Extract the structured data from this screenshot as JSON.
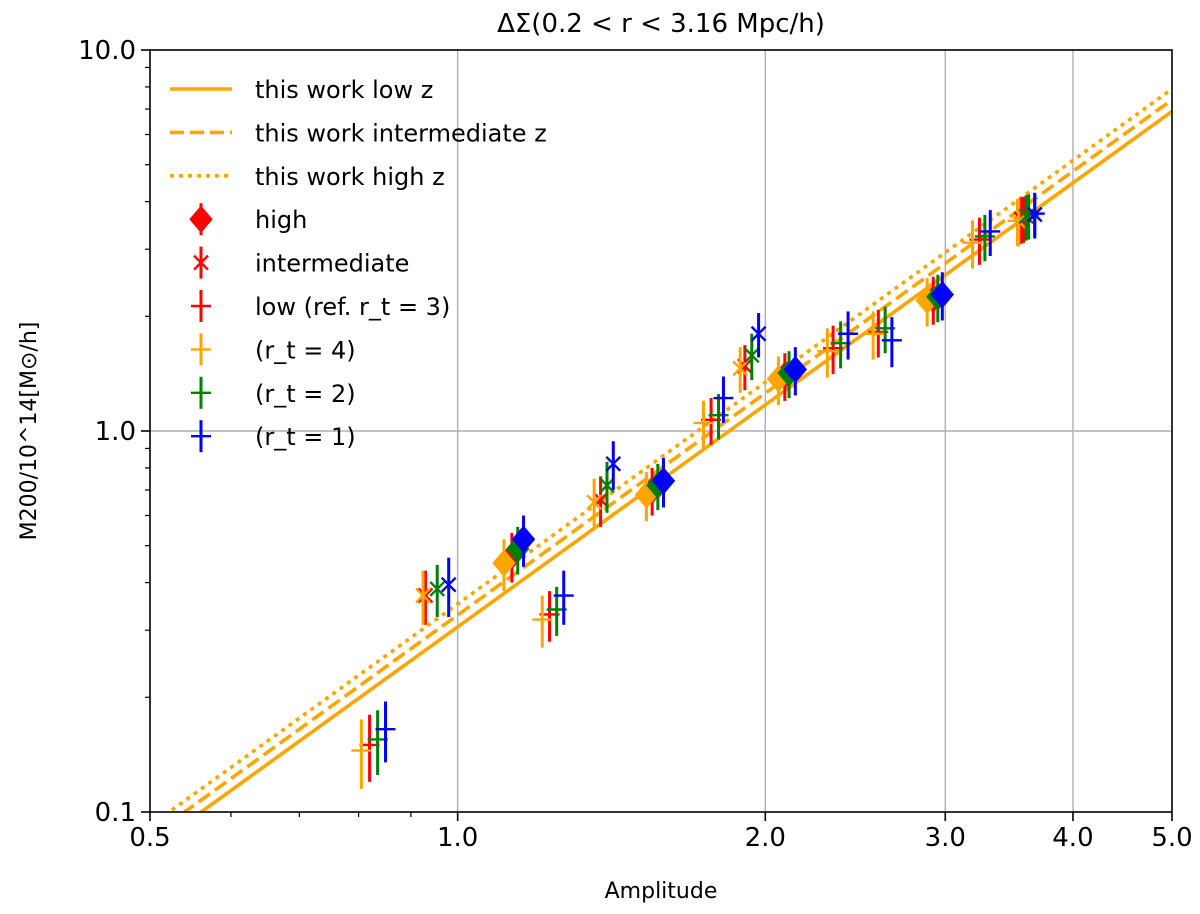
{
  "chart_data": {
    "type": "scatter",
    "title": "ΔΣ(0.2 < r < 3.16 Mpc/h)",
    "xlabel": "Amplitude",
    "ylabel": "M200/10^14[M⊙/h]",
    "xscale": "log",
    "yscale": "log",
    "xlim": [
      0.5,
      5.0
    ],
    "ylim": [
      0.1,
      10.0
    ],
    "xticks": [
      0.5,
      1.0,
      2.0,
      3.0,
      4.0,
      5.0
    ],
    "xtick_labels": [
      "0.5",
      "1.0",
      "2.0",
      "3.0",
      "4.0",
      "5.0"
    ],
    "yticks": [
      0.1,
      1.0,
      10.0
    ],
    "ytick_labels": [
      "0.1",
      "1.0",
      "10.0"
    ],
    "grid": true,
    "legend_position": "top-left",
    "legend": [
      {
        "label": "this work low z",
        "kind": "line",
        "style": "solid",
        "color": "#ffa500"
      },
      {
        "label": "this work intermediate z",
        "kind": "line",
        "style": "dashed",
        "color": "#ffa500"
      },
      {
        "label": "this work high z",
        "kind": "line",
        "style": "dotted",
        "color": "#ffa500"
      },
      {
        "label": "high",
        "kind": "marker",
        "marker": "diamond",
        "color": "#ff0000"
      },
      {
        "label": "intermediate",
        "kind": "marker",
        "marker": "x",
        "color": "#ff0000"
      },
      {
        "label": "low (ref. r_t = 3)",
        "kind": "marker",
        "marker": "plus",
        "color": "#ff0000"
      },
      {
        "label": "(r_t = 4)",
        "kind": "marker",
        "marker": "plus",
        "color": "#ffa500"
      },
      {
        "label": "(r_t = 2)",
        "kind": "marker",
        "marker": "plus",
        "color": "#008000"
      },
      {
        "label": "(r_t = 1)",
        "kind": "marker",
        "marker": "plus",
        "color": "#0000ff"
      }
    ],
    "fit_lines": [
      {
        "name": "this work low z",
        "style": "solid",
        "color": "#ffa500",
        "x": [
          0.5,
          5.0
        ],
        "y": [
          0.08,
          6.9
        ]
      },
      {
        "name": "this work intermediate z",
        "style": "dashed",
        "color": "#ffa500",
        "x": [
          0.5,
          5.0
        ],
        "y": [
          0.086,
          7.4
        ]
      },
      {
        "name": "this work high z",
        "style": "dotted",
        "color": "#ffa500",
        "x": [
          0.5,
          5.0
        ],
        "y": [
          0.092,
          7.9
        ]
      }
    ],
    "series": [
      {
        "name": "low (ref. r_t = 3)",
        "marker": "plus",
        "color": "#ff0000",
        "x": [
          0.82,
          1.23,
          1.77,
          2.33,
          2.58,
          3.24,
          3.58
        ],
        "y": [
          0.15,
          0.33,
          1.07,
          1.65,
          1.82,
          3.18,
          3.62
        ],
        "yerr": [
          0.03,
          0.05,
          0.15,
          0.24,
          0.26,
          0.45,
          0.5
        ]
      },
      {
        "name": "(r_t = 4)",
        "marker": "plus",
        "color": "#ffa500",
        "x": [
          0.805,
          1.21,
          1.74,
          2.3,
          2.55,
          3.19,
          3.53
        ],
        "y": [
          0.145,
          0.32,
          1.05,
          1.62,
          1.8,
          3.12,
          3.56
        ],
        "yerr": [
          0.03,
          0.05,
          0.15,
          0.24,
          0.26,
          0.45,
          0.5
        ]
      },
      {
        "name": "(r_t = 2)",
        "marker": "plus",
        "color": "#008000",
        "x": [
          0.835,
          1.25,
          1.8,
          2.37,
          2.62,
          3.28,
          3.62
        ],
        "y": [
          0.155,
          0.34,
          1.1,
          1.7,
          1.86,
          3.24,
          3.68
        ],
        "yerr": [
          0.03,
          0.05,
          0.15,
          0.24,
          0.26,
          0.45,
          0.5
        ]
      },
      {
        "name": "(r_t = 1)",
        "marker": "plus",
        "color": "#0000ff",
        "x": [
          0.85,
          1.27,
          1.82,
          2.41,
          2.66,
          3.32,
          3.67
        ],
        "y": [
          0.165,
          0.37,
          1.22,
          1.8,
          1.73,
          3.34,
          3.72
        ],
        "yerr": [
          0.03,
          0.06,
          0.17,
          0.26,
          0.26,
          0.46,
          0.5
        ]
      },
      {
        "name": "intermediate",
        "marker": "x",
        "color": "#ff0000",
        "x": [
          0.93,
          1.38,
          1.91,
          3.56
        ],
        "y": [
          0.37,
          0.66,
          1.48,
          3.6
        ],
        "yerr": [
          0.06,
          0.1,
          0.2,
          0.5
        ]
      },
      {
        "name": "intermediate (r_t = 4)",
        "marker": "x",
        "color": "#ffa500",
        "x": [
          0.925,
          1.36,
          1.89,
          3.54
        ],
        "y": [
          0.37,
          0.65,
          1.46,
          3.55
        ],
        "yerr": [
          0.06,
          0.1,
          0.2,
          0.5
        ]
      },
      {
        "name": "intermediate (r_t = 2)",
        "marker": "x",
        "color": "#008000",
        "x": [
          0.955,
          1.4,
          1.94,
          3.6
        ],
        "y": [
          0.385,
          0.72,
          1.58,
          3.66
        ],
        "yerr": [
          0.06,
          0.11,
          0.22,
          0.5
        ]
      },
      {
        "name": "intermediate (r_t = 1)",
        "marker": "x",
        "color": "#0000ff",
        "x": [
          0.98,
          1.42,
          1.97,
          3.67
        ],
        "y": [
          0.395,
          0.82,
          1.8,
          3.7
        ],
        "yerr": [
          0.07,
          0.12,
          0.24,
          0.5
        ]
      },
      {
        "name": "high",
        "marker": "diamond",
        "color": "#ff0000",
        "x": [
          1.13,
          1.55,
          2.09,
          2.92
        ],
        "y": [
          0.47,
          0.7,
          1.4,
          2.22
        ],
        "yerr": [
          0.07,
          0.1,
          0.2,
          0.32
        ]
      },
      {
        "name": "high (r_t = 4)",
        "marker": "diamond",
        "color": "#ffa500",
        "x": [
          1.11,
          1.53,
          2.06,
          2.88
        ],
        "y": [
          0.45,
          0.68,
          1.37,
          2.2
        ],
        "yerr": [
          0.07,
          0.1,
          0.2,
          0.32
        ]
      },
      {
        "name": "high (r_t = 2)",
        "marker": "diamond",
        "color": "#008000",
        "x": [
          1.145,
          1.57,
          2.11,
          2.95
        ],
        "y": [
          0.49,
          0.72,
          1.42,
          2.25
        ],
        "yerr": [
          0.07,
          0.1,
          0.2,
          0.32
        ]
      },
      {
        "name": "high (r_t = 1)",
        "marker": "diamond",
        "color": "#0000ff",
        "x": [
          1.16,
          1.59,
          2.14,
          2.98
        ],
        "y": [
          0.52,
          0.74,
          1.45,
          2.28
        ],
        "yerr": [
          0.08,
          0.11,
          0.21,
          0.33
        ]
      }
    ]
  }
}
